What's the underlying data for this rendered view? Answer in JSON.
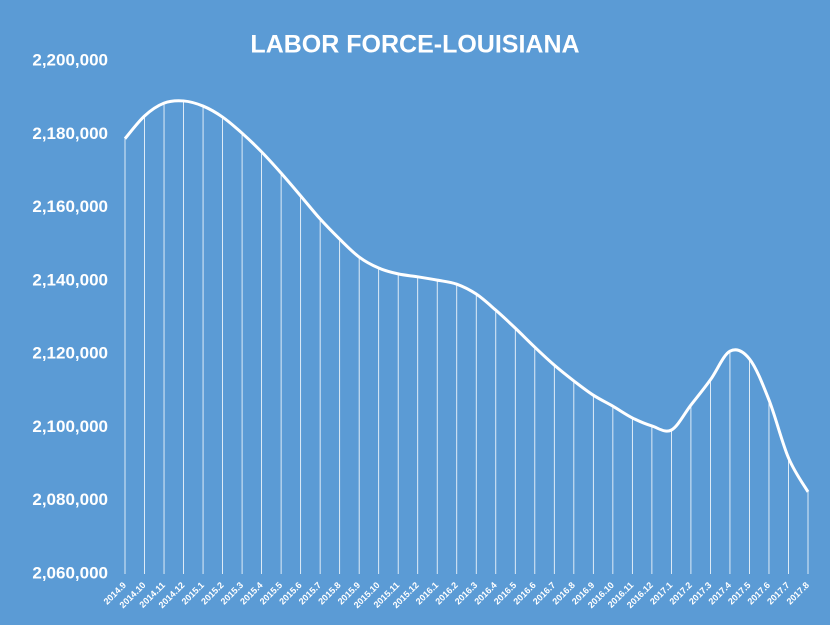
{
  "chart_data": {
    "type": "line",
    "title": "LABOR FORCE-LOUISIANA",
    "categories": [
      "2014.9",
      "2014.10",
      "2014.11",
      "2014.12",
      "2015.1",
      "2015.2",
      "2015.3",
      "2015.4",
      "2015.5",
      "2015.6",
      "2015.7",
      "2015.8",
      "2015.9",
      "2015.10",
      "2015.11",
      "2015.12",
      "2016.1",
      "2016.2",
      "2016.3",
      "2016.4",
      "2016.5",
      "2016.6",
      "2016.7",
      "2016.8",
      "2016.9",
      "2016.10",
      "2016.11",
      "2016.12",
      "2017.1",
      "2017.2",
      "2017.3",
      "2017.4",
      "2017.5",
      "2017.6",
      "2017.7",
      "2017.8"
    ],
    "values": [
      2178800,
      2185000,
      2188500,
      2189100,
      2187700,
      2184700,
      2180300,
      2175200,
      2169400,
      2163200,
      2156900,
      2151400,
      2146500,
      2143500,
      2141900,
      2141100,
      2140200,
      2139100,
      2136400,
      2132000,
      2127100,
      2121900,
      2117000,
      2112700,
      2108800,
      2105800,
      2102600,
      2100400,
      2099300,
      2106100,
      2113000,
      2120800,
      2118700,
      2107500,
      2091700,
      2082400
    ],
    "color": "#ffffff",
    "ylim": [
      2060000,
      2200000
    ],
    "yticks": [
      {
        "value": 2060000,
        "label": "2,060,000"
      },
      {
        "value": 2080000,
        "label": "2,080,000"
      },
      {
        "value": 2100000,
        "label": "2,100,000"
      },
      {
        "value": 2120000,
        "label": "2,120,000"
      },
      {
        "value": 2140000,
        "label": "2,140,000"
      },
      {
        "value": 2160000,
        "label": "2,160,000"
      },
      {
        "value": 2180000,
        "label": "2,180,000"
      },
      {
        "value": 2200000,
        "label": "2,200,000"
      }
    ],
    "drop_lines": true
  }
}
